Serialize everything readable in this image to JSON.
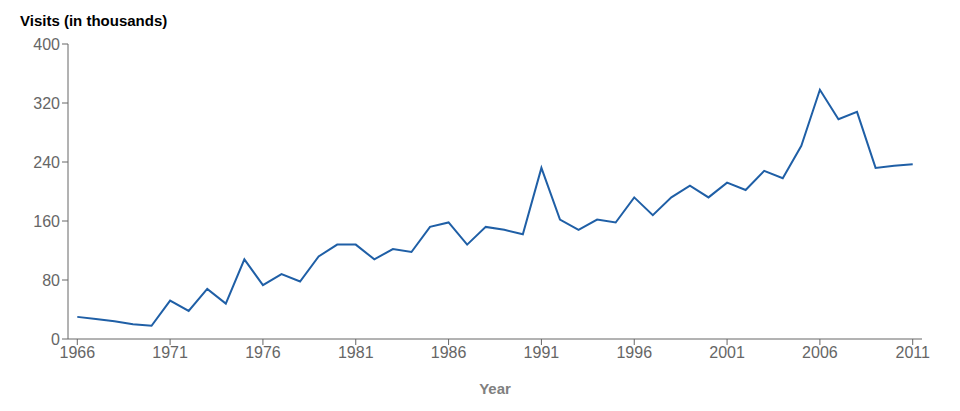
{
  "chart_data": {
    "type": "line",
    "xlabel": "Year",
    "ylabel": "Visits (in thousands)",
    "x": [
      1966,
      1967,
      1968,
      1969,
      1970,
      1971,
      1972,
      1973,
      1974,
      1975,
      1976,
      1977,
      1978,
      1979,
      1980,
      1981,
      1982,
      1983,
      1984,
      1985,
      1986,
      1987,
      1988,
      1989,
      1990,
      1991,
      1992,
      1993,
      1994,
      1995,
      1996,
      1997,
      1998,
      1999,
      2000,
      2001,
      2002,
      2003,
      2004,
      2005,
      2006,
      2007,
      2008,
      2009,
      2010,
      2011
    ],
    "values": [
      30,
      27,
      24,
      20,
      18,
      52,
      38,
      68,
      48,
      108,
      73,
      88,
      78,
      112,
      128,
      128,
      108,
      122,
      118,
      152,
      158,
      128,
      152,
      148,
      142,
      232,
      162,
      148,
      162,
      158,
      192,
      168,
      192,
      208,
      192,
      212,
      202,
      228,
      218,
      262,
      338,
      298,
      308,
      232,
      235,
      237
    ],
    "color": "#1f5fa6",
    "xlim": [
      1965.5,
      2011.5
    ],
    "ylim": [
      0,
      400
    ],
    "xticks": [
      1966,
      1971,
      1976,
      1981,
      1986,
      1991,
      1996,
      2001,
      2006,
      2011
    ],
    "yticks": [
      0,
      80,
      160,
      240,
      320,
      400
    ],
    "grid": false
  }
}
